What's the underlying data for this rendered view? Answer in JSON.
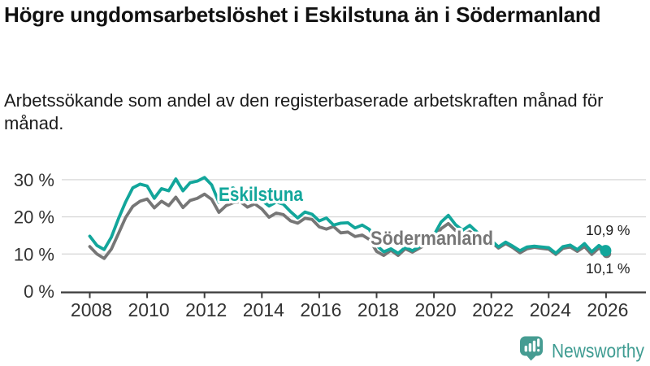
{
  "header": {
    "title": "Högre ungdomsarbetslöshet i Eskilstuna än i Södermanland",
    "subtitle": "Arbetssökande som andel av den registerbaserade arbetskraften månad för månad."
  },
  "chart_data": {
    "type": "line",
    "title": "Högre ungdomsarbetslöshet i Eskilstuna än i Södermanland",
    "subtitle": "Arbetssökande som andel av den registerbaserade arbetskraften månad för månad.",
    "grid": "horizontal",
    "legend": "inline-labels",
    "x_start": 2008,
    "x_step": 0.25,
    "xlim": [
      2007.6,
      2026.6
    ],
    "ylim": [
      0,
      33
    ],
    "x_ticks": [
      2008,
      2010,
      2012,
      2014,
      2016,
      2018,
      2020,
      2022,
      2024,
      2026
    ],
    "x_tick_labels": [
      "2008",
      "2010",
      "2012",
      "2014",
      "2016",
      "2018",
      "2020",
      "2022",
      "2024",
      "2026"
    ],
    "y_ticks": [
      0,
      10,
      20,
      30
    ],
    "y_tick_labels": [
      "0 %",
      "10 %",
      "20 %",
      "30 %"
    ],
    "series": [
      {
        "name": "Eskilstuna",
        "color": "#12a69b",
        "end_label": "10,9 %",
        "end_value": 10.9,
        "values": [
          14.8,
          12.3,
          11.2,
          14.5,
          19.5,
          24.0,
          27.8,
          28.8,
          28.3,
          25.0,
          27.6,
          27.0,
          30.2,
          27.0,
          29.2,
          29.6,
          30.6,
          28.6,
          23.9,
          27.3,
          27.8,
          26.3,
          24.8,
          25.8,
          24.4,
          22.9,
          24.0,
          23.4,
          21.4,
          19.7,
          21.3,
          20.7,
          18.9,
          19.7,
          17.8,
          18.3,
          18.4,
          17.0,
          17.8,
          16.6,
          12.3,
          10.6,
          11.4,
          10.2,
          11.8,
          10.9,
          12.1,
          13.4,
          15.1,
          18.6,
          20.4,
          17.9,
          16.4,
          17.7,
          15.9,
          14.4,
          13.6,
          11.9,
          13.2,
          12.1,
          10.9,
          11.9,
          12.1,
          11.9,
          11.7,
          10.2,
          12.0,
          12.4,
          11.2,
          12.8,
          10.6,
          12.3,
          10.9
        ]
      },
      {
        "name": "Södermanland",
        "color": "#767676",
        "end_label": "10,1 %",
        "end_value": 10.1,
        "values": [
          12.0,
          10.0,
          8.8,
          11.3,
          15.5,
          19.8,
          22.8,
          24.2,
          24.8,
          22.4,
          24.2,
          23.0,
          25.3,
          22.5,
          24.4,
          25.0,
          26.1,
          24.7,
          21.2,
          23.0,
          23.8,
          24.1,
          22.6,
          23.5,
          22.1,
          19.9,
          21.0,
          20.6,
          18.9,
          18.3,
          19.6,
          19.3,
          17.3,
          16.7,
          17.4,
          15.7,
          15.9,
          14.7,
          15.1,
          13.9,
          10.7,
          9.6,
          11.0,
          9.6,
          11.4,
          10.5,
          11.6,
          12.7,
          14.2,
          16.8,
          18.2,
          16.3,
          15.3,
          16.0,
          14.9,
          14.2,
          13.2,
          11.6,
          12.8,
          11.7,
          10.3,
          11.4,
          11.8,
          11.5,
          11.3,
          9.9,
          11.5,
          11.9,
          10.7,
          12.0,
          9.9,
          11.6,
          10.1
        ]
      }
    ]
  },
  "footer": {
    "brand": "Newsworthy",
    "brand_color": "#3f9c92",
    "logo_icon": "bar-chart-speech-bubble-icon"
  },
  "colors": {
    "grid": "#d9d9d9",
    "axis": "#3c3c3c",
    "tick_label": "#333333",
    "end_label": "#1a1a1a"
  }
}
